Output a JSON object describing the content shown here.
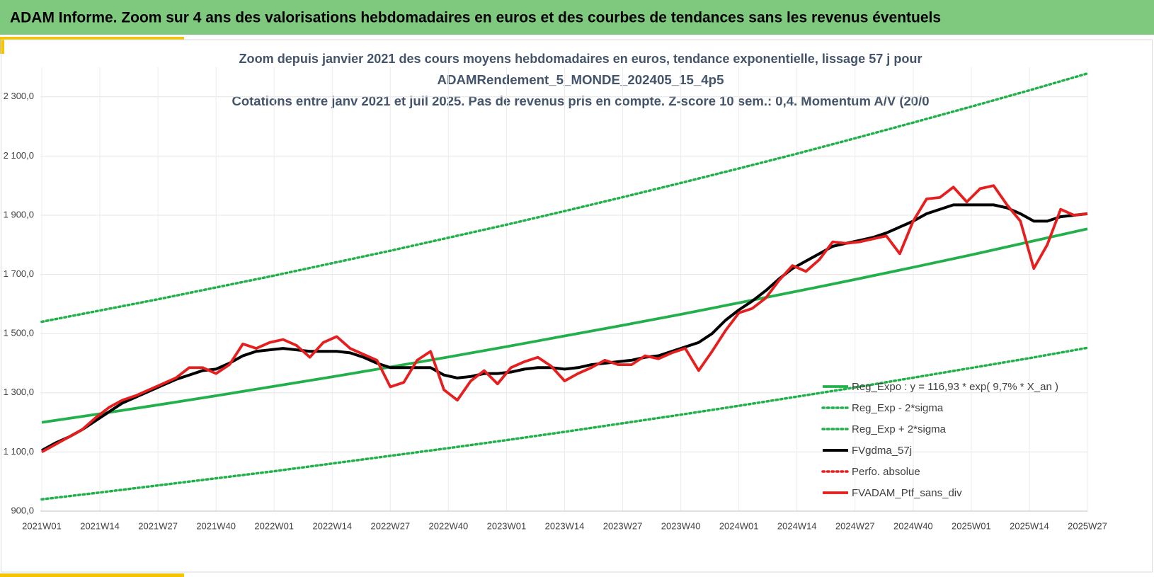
{
  "header": "ADAM Informe. Zoom sur 4 ans des valorisations hebdomadaires en euros et des courbes de tendances sans les revenus éventuels",
  "chart_data": {
    "type": "line",
    "title": [
      "Zoom depuis janvier 2021 des cours moyens hebdomadaires  en euros, tendance exponentielle, lissage 57 j pour",
      "ADAMRendement_5_MONDE_202405_15_4p5",
      "Cotations entre janv 2021 et juil 2025. Pas de revenus pris en compte. Z-score 10 sem.: 0,4. Momentum A/V (20/0"
    ],
    "xlim": [
      0,
      234
    ],
    "xticks": [
      {
        "value": 0,
        "label": "2021W01"
      },
      {
        "value": 13,
        "label": "2021W14"
      },
      {
        "value": 26,
        "label": "2021W27"
      },
      {
        "value": 39,
        "label": "2021W40"
      },
      {
        "value": 52,
        "label": "2022W01"
      },
      {
        "value": 65,
        "label": "2022W14"
      },
      {
        "value": 78,
        "label": "2022W27"
      },
      {
        "value": 91,
        "label": "2022W40"
      },
      {
        "value": 104,
        "label": "2023W01"
      },
      {
        "value": 117,
        "label": "2023W14"
      },
      {
        "value": 130,
        "label": "2023W27"
      },
      {
        "value": 143,
        "label": "2023W40"
      },
      {
        "value": 156,
        "label": "2024W01"
      },
      {
        "value": 169,
        "label": "2024W14"
      },
      {
        "value": 182,
        "label": "2024W27"
      },
      {
        "value": 195,
        "label": "2024W40"
      },
      {
        "value": 208,
        "label": "2025W01"
      },
      {
        "value": 221,
        "label": "2025W14"
      },
      {
        "value": 234,
        "label": "2025W27"
      }
    ],
    "ylim": [
      900,
      2400
    ],
    "yticks": [
      {
        "value": 900,
        "label": "900,0"
      },
      {
        "value": 1100,
        "label": "1 100,0"
      },
      {
        "value": 1300,
        "label": "1 300,0"
      },
      {
        "value": 1500,
        "label": "1 500,0"
      },
      {
        "value": 1700,
        "label": "1 700,0"
      },
      {
        "value": 1900,
        "label": "1 900,0"
      },
      {
        "value": 2100,
        "label": "2 100,0"
      },
      {
        "value": 2300,
        "label": "2 300,0"
      }
    ],
    "grid": true,
    "legend": "lower right",
    "x": [
      0,
      3,
      6,
      9,
      12,
      15,
      18,
      21,
      24,
      27,
      30,
      33,
      36,
      39,
      42,
      45,
      48,
      51,
      54,
      57,
      60,
      63,
      66,
      69,
      72,
      75,
      78,
      81,
      84,
      87,
      90,
      93,
      96,
      99,
      102,
      105,
      108,
      111,
      114,
      117,
      120,
      123,
      126,
      129,
      132,
      135,
      138,
      141,
      144,
      147,
      150,
      153,
      156,
      159,
      162,
      165,
      168,
      171,
      174,
      177,
      180,
      183,
      186,
      189,
      192,
      195,
      198,
      201,
      204,
      207,
      210,
      213,
      216,
      219,
      222,
      225,
      228,
      231,
      234
    ],
    "series": [
      {
        "name": "Reg_Expo : y = 116,93 * exp( 9,7% *  X_an )",
        "color": "#22b04b",
        "style": "solid",
        "x": [
          0,
          13,
          26,
          39,
          52,
          65,
          78,
          91,
          104,
          117,
          130,
          143,
          156,
          169,
          182,
          195,
          208,
          221,
          234
        ],
        "values": [
          1200,
          1229,
          1259,
          1290,
          1322,
          1354,
          1387,
          1421,
          1456,
          1492,
          1528,
          1565,
          1604,
          1643,
          1683,
          1724,
          1766,
          1810,
          1854
        ]
      },
      {
        "name": "Reg_Exp - 2*sigma",
        "color": "#22b04b",
        "style": "dotted",
        "x": [
          0,
          13,
          26,
          39,
          52,
          65,
          78,
          91,
          104,
          117,
          130,
          143,
          156,
          169,
          182,
          195,
          208,
          221,
          234
        ],
        "values": [
          940,
          963,
          987,
          1011,
          1035,
          1061,
          1087,
          1113,
          1140,
          1168,
          1197,
          1226,
          1256,
          1287,
          1318,
          1351,
          1384,
          1417,
          1452
        ]
      },
      {
        "name": "Reg_Exp + 2*sigma",
        "color": "#22b04b",
        "style": "dotted",
        "x": [
          0,
          13,
          26,
          39,
          52,
          65,
          78,
          91,
          104,
          117,
          130,
          143,
          156,
          169,
          182,
          195,
          208,
          221,
          234
        ],
        "values": [
          1540,
          1578,
          1616,
          1656,
          1696,
          1738,
          1780,
          1824,
          1868,
          1914,
          1961,
          2009,
          2058,
          2108,
          2160,
          2213,
          2267,
          2322,
          2379
        ]
      },
      {
        "name": "FVgdma_57j",
        "color": "#000000",
        "style": "solid",
        "values": [
          1105,
          1130,
          1150,
          1175,
          1205,
          1235,
          1265,
          1285,
          1305,
          1325,
          1345,
          1360,
          1375,
          1380,
          1400,
          1425,
          1440,
          1445,
          1450,
          1445,
          1440,
          1440,
          1440,
          1435,
          1420,
          1400,
          1385,
          1385,
          1385,
          1385,
          1360,
          1350,
          1355,
          1365,
          1365,
          1370,
          1380,
          1385,
          1385,
          1380,
          1385,
          1395,
          1400,
          1405,
          1410,
          1420,
          1425,
          1440,
          1455,
          1470,
          1500,
          1545,
          1580,
          1610,
          1645,
          1685,
          1720,
          1745,
          1770,
          1795,
          1805,
          1815,
          1825,
          1840,
          1860,
          1880,
          1905,
          1920,
          1935,
          1935,
          1935,
          1935,
          1925,
          1905,
          1880,
          1880,
          1895,
          1900,
          1905
        ]
      },
      {
        "name": "Perfo. absolue",
        "color": "#e61e1e",
        "style": "dotted"
      },
      {
        "name": "FVADAM_Ptf_sans_div",
        "color": "#e61e1e",
        "style": "solid",
        "values": [
          1100,
          1125,
          1150,
          1175,
          1215,
          1250,
          1275,
          1290,
          1310,
          1330,
          1350,
          1385,
          1385,
          1365,
          1395,
          1465,
          1450,
          1470,
          1480,
          1460,
          1420,
          1470,
          1490,
          1450,
          1430,
          1410,
          1320,
          1335,
          1410,
          1440,
          1310,
          1275,
          1340,
          1375,
          1330,
          1385,
          1405,
          1420,
          1390,
          1340,
          1365,
          1385,
          1410,
          1395,
          1395,
          1425,
          1415,
          1435,
          1450,
          1375,
          1440,
          1510,
          1570,
          1585,
          1620,
          1680,
          1730,
          1710,
          1750,
          1810,
          1805,
          1810,
          1820,
          1830,
          1770,
          1880,
          1955,
          1960,
          1995,
          1945,
          1990,
          2000,
          1935,
          1880,
          1720,
          1800,
          1920,
          1900,
          1905
        ]
      }
    ]
  }
}
